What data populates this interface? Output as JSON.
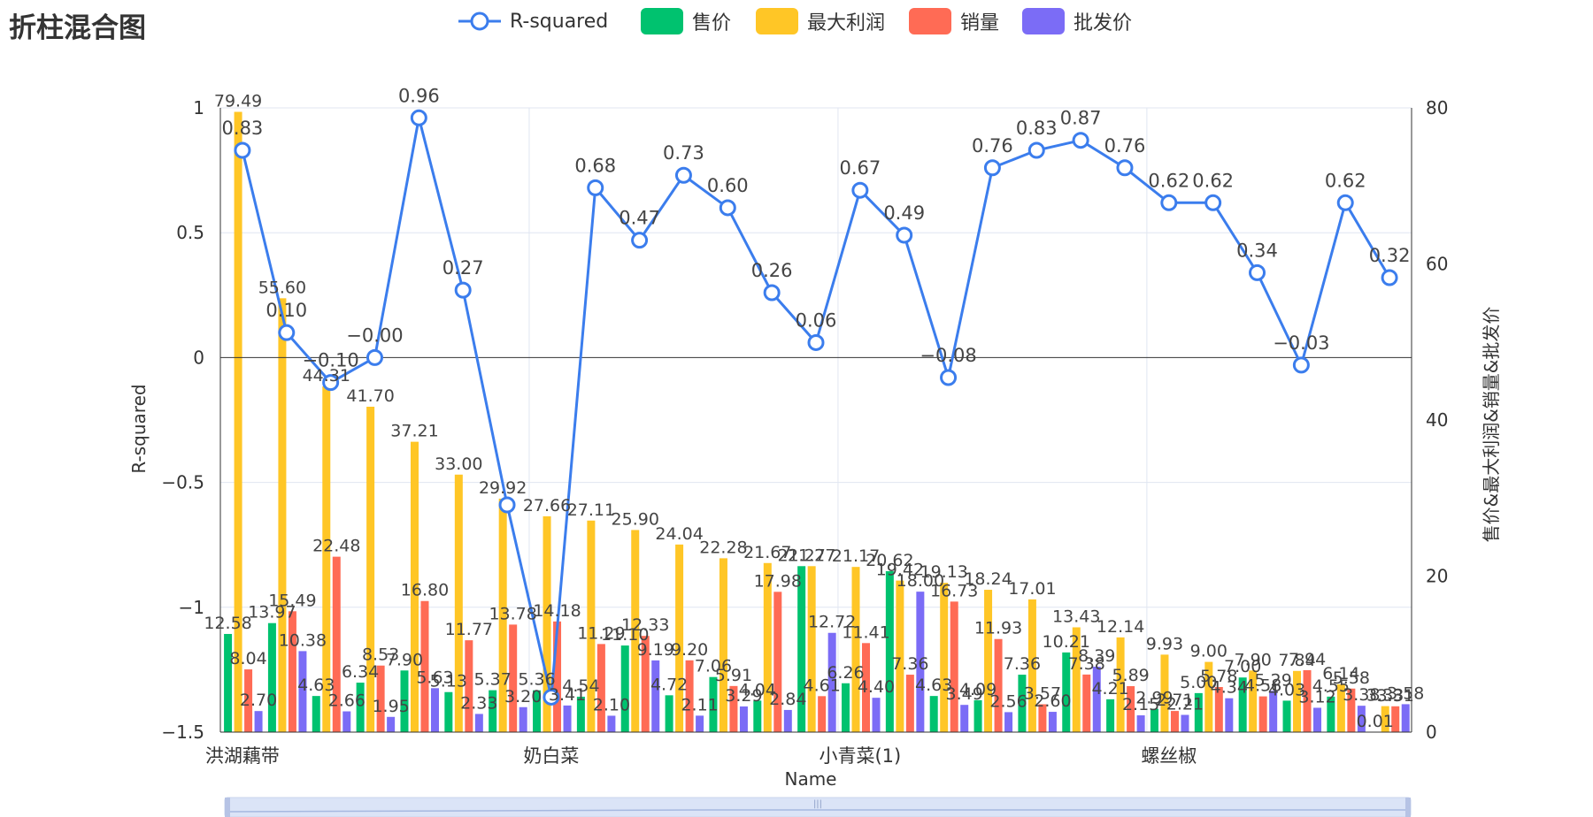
{
  "title": "折柱混合图",
  "colors": {
    "r_squared": "#3b7ded",
    "sale_price": "#00c26f",
    "max_profit": "#ffc626",
    "sales_volume": "#ff6b55",
    "wholesale_price": "#7b6cf6",
    "axis": "#333333",
    "grid": "#e0e6f1"
  },
  "chart_data": {
    "type": "bar",
    "title": "折柱混合图",
    "xlabel": "Name",
    "ylabel": "R-squared",
    "ylabel_right": "售价&最大利润&销量&批发价",
    "ylim": [
      -1.5,
      1
    ],
    "ylim_right": [
      0,
      80
    ],
    "yticks": [
      "1",
      "0.5",
      "0",
      "−0.5",
      "−1",
      "−1.5"
    ],
    "yticks_right": [
      "80",
      "60",
      "40",
      "20",
      "0"
    ],
    "x_tick_labels": [
      "洪湖藕带",
      "奶白菜",
      "小青菜(1)",
      "螺丝椒"
    ],
    "grid": true,
    "legend": "top-center",
    "series": [
      {
        "name": "R-squared",
        "type": "line",
        "axis": "left",
        "values": [
          0.83,
          0.1,
          -0.1,
          -0.0,
          0.96,
          0.27,
          -0.59,
          -1.36,
          0.68,
          0.47,
          0.73,
          0.6,
          0.26,
          0.06,
          0.67,
          0.49,
          -0.08,
          0.76,
          0.83,
          0.87,
          0.76,
          0.62,
          0.62,
          0.34,
          -0.03,
          0.62,
          0.32
        ],
        "labels": [
          "0.83",
          "0.10",
          "−0.10",
          "−0.00",
          "0.96",
          "0.27",
          "",
          "",
          "0.68",
          "0.47",
          "0.73",
          "0.60",
          "0.26",
          "0.06",
          "0.67",
          "0.49",
          "−0.08",
          "0.76",
          "0.83",
          "0.87",
          "0.76",
          "0.62",
          "0.62",
          "0.34",
          "−0.03",
          "0.62",
          "0.32"
        ]
      },
      {
        "name": "售价",
        "type": "bar",
        "axis": "right",
        "values": [
          12.58,
          13.97,
          4.63,
          6.34,
          7.9,
          5.13,
          5.37,
          5.36,
          4.54,
          11.1,
          4.72,
          7.06,
          4.04,
          21.27,
          6.26,
          20.62,
          4.63,
          4.09,
          7.36,
          10.21,
          4.21,
          2.99,
          5.0,
          7.0,
          4.03,
          4.55,
          0.01
        ],
        "labels": [
          "12.58",
          "13.97",
          "4.63",
          "6.34",
          "7.90",
          "5.13",
          "5.37",
          "5.36",
          "4.54",
          "11.10",
          "4.72",
          "7.06",
          "4.04",
          "21.27",
          "6.26",
          "20.62",
          "4.63",
          "4.09",
          "7.36",
          "10.21",
          "4.21",
          "2.99",
          "5.00",
          "7.00",
          "4.03",
          "4.55",
          "0.01"
        ]
      },
      {
        "name": "最大利润",
        "type": "bar",
        "axis": "right",
        "values": [
          79.49,
          55.6,
          44.31,
          41.7,
          37.21,
          33.0,
          29.92,
          27.66,
          27.11,
          25.9,
          24.04,
          22.28,
          21.67,
          21.27,
          21.17,
          19.42,
          19.13,
          18.24,
          17.01,
          13.43,
          12.14,
          9.93,
          9.0,
          7.9,
          7.84,
          6.14,
          3.33
        ],
        "labels": [
          "79.49",
          "55.60",
          "44.31",
          "41.70",
          "37.21",
          "33.00",
          "29.92",
          "27.66",
          "27.11",
          "25.90",
          "24.04",
          "22.28",
          "21.67",
          "21.27",
          "21.17",
          "19.42",
          "19.13",
          "18.24",
          "17.01",
          "13.43",
          "12.14",
          "9.93",
          "9.00",
          "7.90",
          "7.84",
          "6.14",
          "3.33"
        ]
      },
      {
        "name": "销量",
        "type": "bar",
        "axis": "right",
        "values": [
          8.04,
          15.49,
          22.48,
          8.53,
          16.8,
          11.77,
          13.78,
          14.18,
          11.29,
          12.33,
          9.2,
          5.91,
          17.98,
          4.61,
          11.41,
          7.36,
          16.73,
          11.93,
          3.57,
          7.38,
          5.89,
          2.71,
          5.78,
          4.58,
          7.94,
          5.58,
          3.31
        ],
        "labels": [
          "8.04",
          "15.49",
          "22.48",
          "8.53",
          "16.80",
          "11.77",
          "13.78",
          "14.18",
          "11.29",
          "12.33",
          "9.20",
          "5.91",
          "17.98",
          "4.61",
          "11.41",
          "7.36",
          "16.73",
          "11.93",
          "3.57",
          "7.38",
          "5.89",
          "2.71",
          "5.78",
          "4.58",
          "7.94",
          "5.58",
          "3.31"
        ]
      },
      {
        "name": "批发价",
        "type": "bar",
        "axis": "right",
        "values": [
          2.7,
          10.38,
          2.66,
          1.95,
          5.63,
          2.33,
          3.2,
          3.41,
          2.1,
          9.19,
          2.11,
          3.29,
          2.84,
          12.72,
          4.4,
          18.0,
          3.49,
          2.56,
          2.6,
          8.39,
          2.15,
          2.21,
          4.34,
          5.29,
          3.12,
          3.38,
          3.58
        ],
        "labels": [
          "2.70",
          "10.38",
          "2.66",
          "1.95",
          "5.63",
          "2.33",
          "3.20",
          "3.41",
          "2.10",
          "9.19",
          "2.11",
          "3.29",
          "2.84",
          "12.72",
          "4.40",
          "18.00",
          "3.49",
          "2.56",
          "2.60",
          "8.39",
          "2.15",
          "2.21",
          "4.34",
          "5.29",
          "3.12",
          "3.38",
          "3.58"
        ]
      }
    ]
  }
}
